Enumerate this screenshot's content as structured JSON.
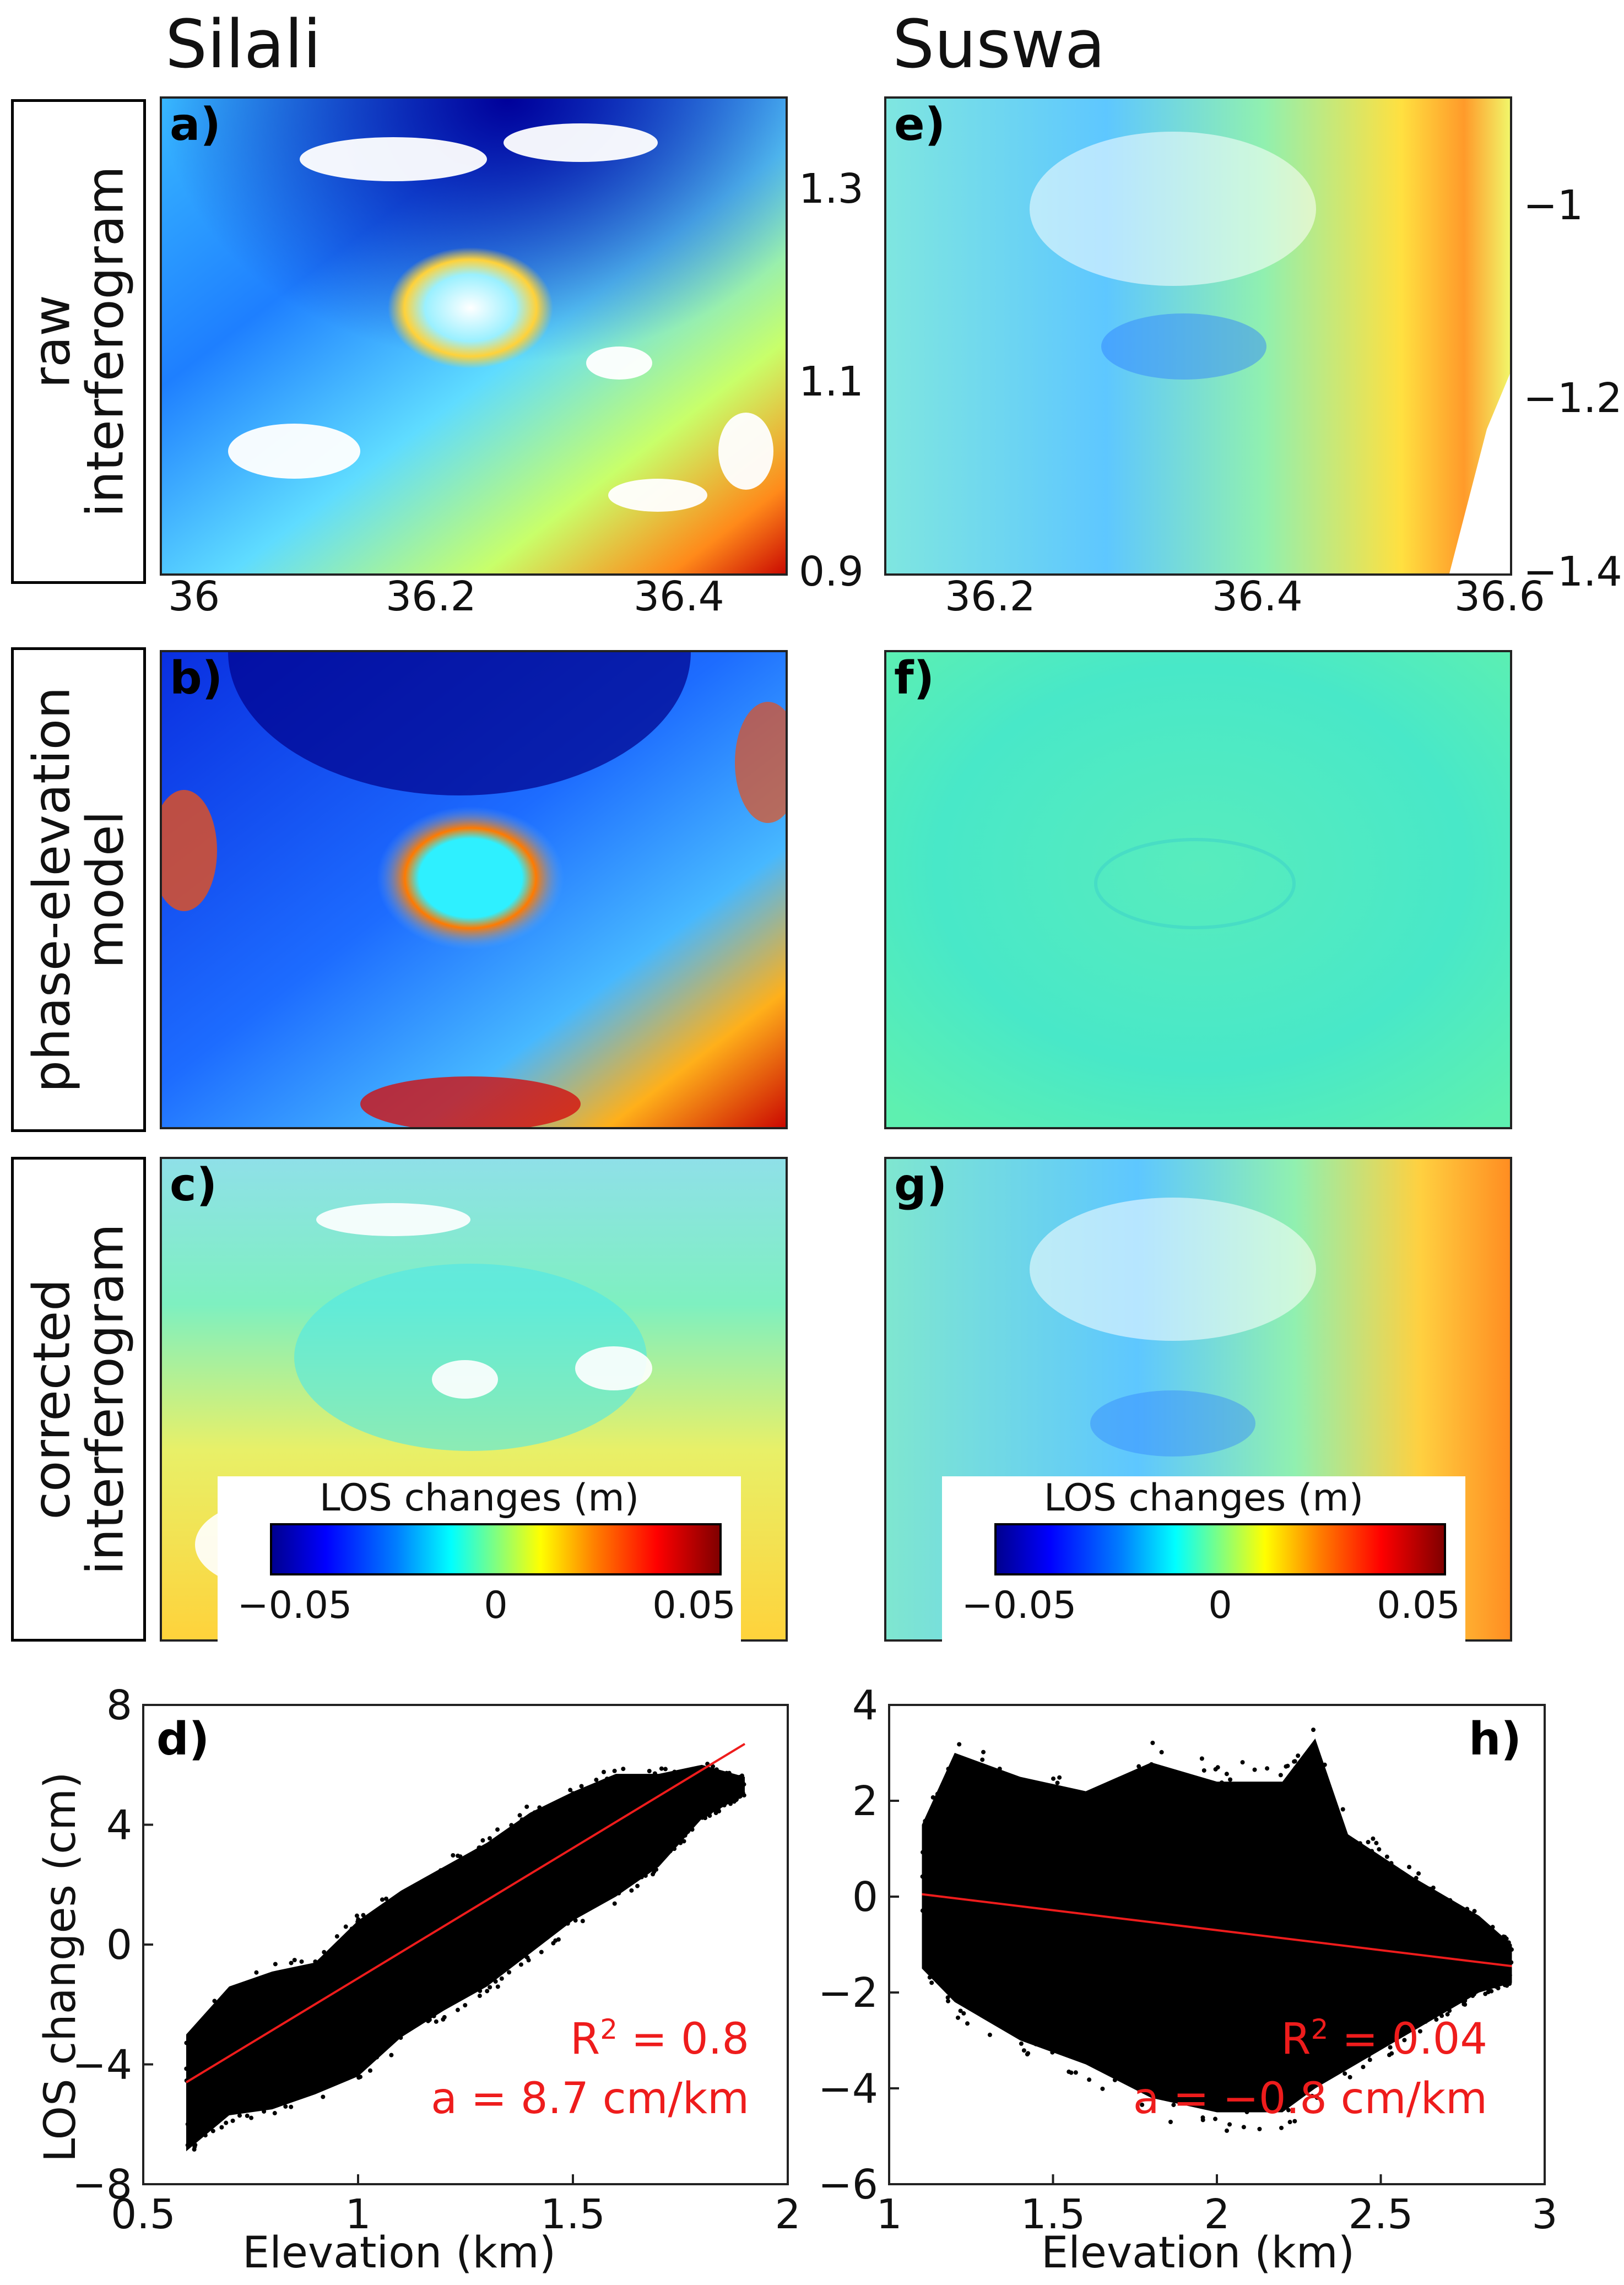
{
  "columns": {
    "left": "Silali",
    "right": "Suswa"
  },
  "rows": {
    "row1": [
      "raw",
      "interferogram"
    ],
    "row2": [
      "phase-elevation",
      "model"
    ],
    "row3": [
      "corrected",
      "interferogram"
    ]
  },
  "panels": {
    "a": "a)",
    "b": "b)",
    "c": "c)",
    "d": "d)",
    "e": "e)",
    "f": "f)",
    "g": "g)",
    "h": "h)"
  },
  "map_axes": {
    "silali_x_ticks": [
      "36",
      "36.2",
      "36.4"
    ],
    "silali_y_ticks": [
      "1.3",
      "1.1",
      "0.9"
    ],
    "suswa_x_ticks": [
      "36.2",
      "36.4",
      "36.6"
    ],
    "suswa_y_ticks": [
      "−1",
      "−1.2",
      "−1.4"
    ]
  },
  "colorbar": {
    "title": "LOS changes (m)",
    "ticks": [
      "−0.05",
      "0",
      "0.05"
    ]
  },
  "scatter_common": {
    "ylabel": "LOS changes (cm)",
    "xlabel": "Elevation (km)"
  },
  "chart_data": [
    {
      "type": "scatter",
      "panel": "d)",
      "title": "Silali",
      "xlabel": "Elevation (km)",
      "ylabel": "LOS changes (cm)",
      "xlim": [
        0.5,
        2
      ],
      "ylim": [
        -8,
        8
      ],
      "x_ticks": [
        "0.5",
        "1",
        "1.5",
        "2"
      ],
      "y_ticks": [
        "8",
        "4",
        "0",
        "−4",
        "−8"
      ],
      "points_color": "#000000",
      "fit_color": "#ee1c1c",
      "fit_line": {
        "x": [
          0.6,
          1.9
        ],
        "y": [
          -4.6,
          6.7
        ]
      },
      "envelope": {
        "x": [
          0.6,
          0.7,
          0.8,
          0.9,
          1.0,
          1.1,
          1.2,
          1.3,
          1.4,
          1.5,
          1.6,
          1.7,
          1.8,
          1.9
        ],
        "upper": [
          -3.0,
          -1.4,
          -0.9,
          -0.6,
          0.8,
          1.8,
          2.6,
          3.4,
          4.4,
          5.1,
          5.7,
          5.7,
          6.0,
          5.6
        ],
        "lower": [
          -6.9,
          -5.7,
          -5.5,
          -5.0,
          -4.4,
          -3.1,
          -2.2,
          -1.4,
          -0.3,
          0.8,
          1.6,
          2.6,
          4.2,
          5.0
        ]
      },
      "annotations": {
        "r2_prefix": "R",
        "r2_sup": "2",
        "r2_value": " = 0.8",
        "slope": "a = 8.7 cm/km"
      }
    },
    {
      "type": "scatter",
      "panel": "h)",
      "title": "Suswa",
      "xlabel": "Elevation (km)",
      "ylabel": "",
      "xlim": [
        1,
        3
      ],
      "ylim": [
        -6,
        4
      ],
      "x_ticks": [
        "1",
        "1.5",
        "2",
        "2.5",
        "3"
      ],
      "y_ticks": [
        "4",
        "2",
        "0",
        "−2",
        "−4",
        "−6"
      ],
      "points_color": "#000000",
      "fit_color": "#ee1c1c",
      "fit_line": {
        "x": [
          1.1,
          2.9
        ],
        "y": [
          0.05,
          -1.45
        ]
      },
      "envelope": {
        "x": [
          1.1,
          1.2,
          1.4,
          1.6,
          1.8,
          2.0,
          2.2,
          2.3,
          2.4,
          2.6,
          2.8,
          2.9
        ],
        "upper": [
          1.5,
          3.0,
          2.5,
          2.2,
          2.8,
          2.4,
          2.4,
          3.3,
          1.3,
          0.4,
          -0.4,
          -1.0
        ],
        "lower": [
          -1.5,
          -2.2,
          -3.0,
          -3.5,
          -4.2,
          -4.5,
          -4.5,
          -4.0,
          -3.6,
          -2.8,
          -2.0,
          -1.8
        ]
      },
      "annotations": {
        "r2_prefix": "R",
        "r2_sup": "2",
        "r2_value": " = 0.04",
        "slope": "a = −0.8 cm/km"
      }
    }
  ]
}
